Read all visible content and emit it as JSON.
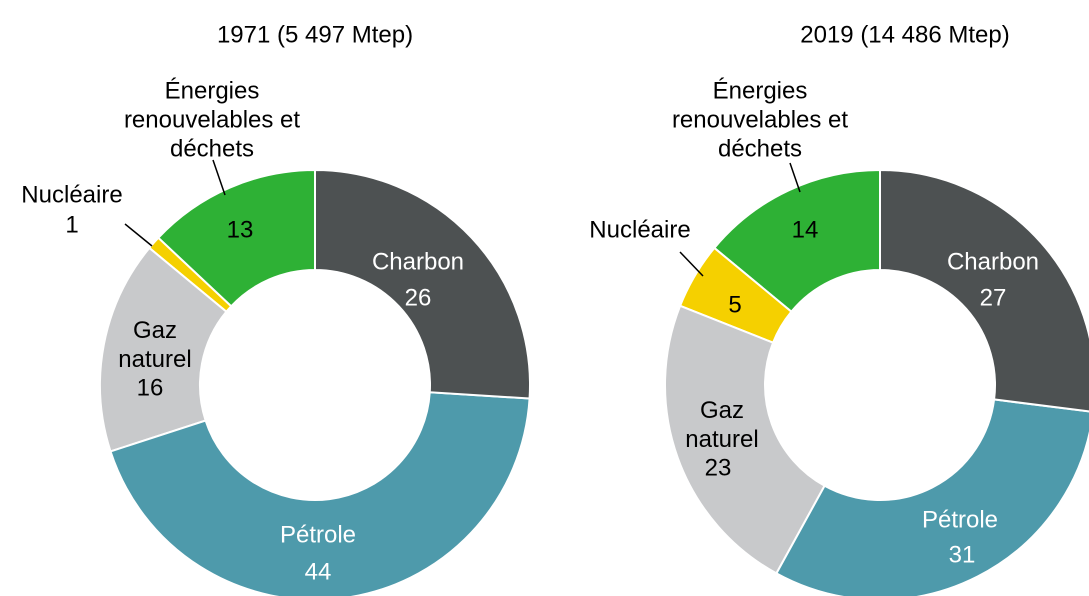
{
  "chart_data": [
    {
      "type": "donut",
      "title": "1971 (5 497 Mtep)",
      "categories": [
        "Charbon",
        "Pétrole",
        "Gaz naturel",
        "Nucléaire",
        "Énergies renouvelables et déchets"
      ],
      "values": [
        26,
        44,
        16,
        1,
        13
      ],
      "colors": [
        "#4d5152",
        "#4e9aab",
        "#c8c9cb",
        "#f5d000",
        "#2eb135"
      ]
    },
    {
      "type": "donut",
      "title": "2019 (14 486 Mtep)",
      "categories": [
        "Charbon",
        "Pétrole",
        "Gaz naturel",
        "Nucléaire",
        "Énergies renouvelables et déchets"
      ],
      "values": [
        27,
        31,
        23,
        5,
        14
      ],
      "colors": [
        "#4d5152",
        "#4e9aab",
        "#c8c9cb",
        "#f5d000",
        "#2eb135"
      ]
    }
  ]
}
